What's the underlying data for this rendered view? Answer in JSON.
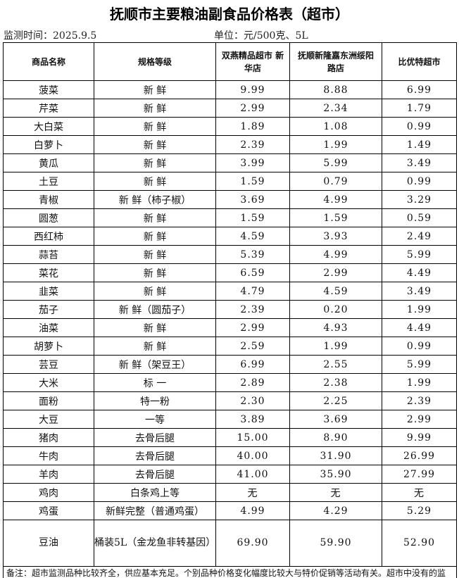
{
  "title": "抚顺市主要粮油副食品价格表（超市）",
  "monitor_time": "监测时间：2025.9.5",
  "unit": "单位：元/500克、5L",
  "headers": [
    "商品名称",
    "规格等级",
    "双燕精品超市 新华店",
    "抚顺新隆嘉东洲绥阳路店",
    "比优特超市"
  ],
  "rows": [
    [
      "菠菜",
      "新 鲜",
      "9.99",
      "8.88",
      "6.99"
    ],
    [
      "芹菜",
      "新 鲜",
      "2.99",
      "2.34",
      "1.79"
    ],
    [
      "大白菜",
      "新 鲜",
      "1.89",
      "1.08",
      "0.99"
    ],
    [
      "白萝卜",
      "新 鲜",
      "2.39",
      "1.99",
      "1.49"
    ],
    [
      "黄瓜",
      "新 鲜",
      "3.99",
      "5.99",
      "3.49"
    ],
    [
      "土豆",
      "新 鲜",
      "1.59",
      "0.79",
      "0.99"
    ],
    [
      "青椒",
      "新 鲜（柿子椒）",
      "3.69",
      "4.99",
      "3.29"
    ],
    [
      "圆葱",
      "新 鲜",
      "1.59",
      "1.59",
      "0.59"
    ],
    [
      "西红柿",
      "新 鲜",
      "4.59",
      "3.93",
      "2.49"
    ],
    [
      "蒜苔",
      "新 鲜",
      "5.39",
      "4.99",
      "5.99"
    ],
    [
      "菜花",
      "新 鲜",
      "6.59",
      "2.99",
      "4.49"
    ],
    [
      "韭菜",
      "新 鲜",
      "4.79",
      "4.59",
      "3.49"
    ],
    [
      "茄子",
      "新 鲜（圆茄子）",
      "2.39",
      "0.20",
      "1.99"
    ],
    [
      "油菜",
      "新 鲜",
      "2.99",
      "4.93",
      "4.49"
    ],
    [
      "胡萝卜",
      "新 鲜",
      "2.59",
      "1.99",
      "0.99"
    ],
    [
      "芸豆",
      "新 鲜（架豆王）",
      "6.99",
      "2.55",
      "5.99"
    ],
    [
      "大米",
      "标 一",
      "2.89",
      "2.38",
      "1.99"
    ],
    [
      "面粉",
      "特一粉",
      "2.30",
      "2.25",
      "2.39"
    ],
    [
      "大豆",
      "一等",
      "3.89",
      "3.69",
      "2.99"
    ],
    [
      "猪肉",
      "去骨后腿",
      "15.00",
      "8.90",
      "9.99"
    ],
    [
      "牛肉",
      "去骨后腿",
      "40.00",
      "31.90",
      "26.99"
    ],
    [
      "羊肉",
      "去骨后腿",
      "41.00",
      "35.90",
      "27.99"
    ],
    [
      "鸡肉",
      "白条鸡上等",
      "无",
      "无",
      "无"
    ],
    [
      "鸡蛋",
      "新鲜完整（普通鸡蛋）",
      "4.99",
      "4.29",
      "5.29"
    ],
    [
      "豆油",
      "桶装5L（金龙鱼非转基因）",
      "69.90",
      "59.90",
      "52.90"
    ]
  ],
  "note": "备注：超市监测品种比较齐全，供应基本充足。个别品种价格变化幅度比较大与特价促销等活动有关。超市中没有的监测品种，有其它同品类货品补充，基本能够满足市民需求。"
}
